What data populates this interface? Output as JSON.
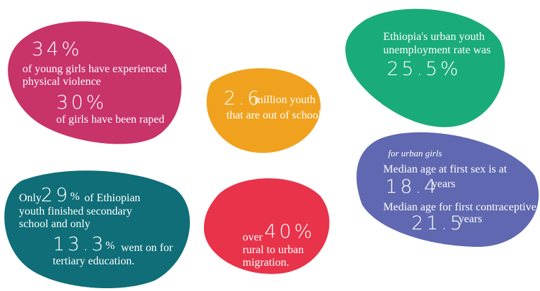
{
  "violence": {
    "stat1": "34%",
    "text1": [
      "of young girls have experienced",
      "physical violence"
    ],
    "stat2": "30%",
    "text2": [
      "of girls have been raped"
    ]
  },
  "out_of_school": {
    "stat": "2.6",
    "text": [
      "million youth",
      "that are out of school"
    ]
  },
  "unemployment": {
    "text": [
      "Ethiopia's urban youth",
      "unemployment rate was"
    ],
    "stat": "25.5%"
  },
  "urban_girls": {
    "note": "for urban girls",
    "text1": "Median age at first sex is at",
    "stat1": "18.4",
    "unit1": "years",
    "text2": "Median age for first contraceptive is",
    "stat2": "21.5",
    "unit2": "years"
  },
  "education": {
    "pre1": "Only",
    "stat1": "29",
    "unit1": "%",
    "text1": [
      "of Ethiopian",
      "youth finished secondary",
      "school and only"
    ],
    "stat2": "13.3",
    "unit2": "%",
    "text2": [
      "went on for",
      "tertiary education."
    ]
  },
  "migration": {
    "pre": "over",
    "stat": "40%",
    "text": [
      "rural to urban",
      "migration."
    ]
  }
}
